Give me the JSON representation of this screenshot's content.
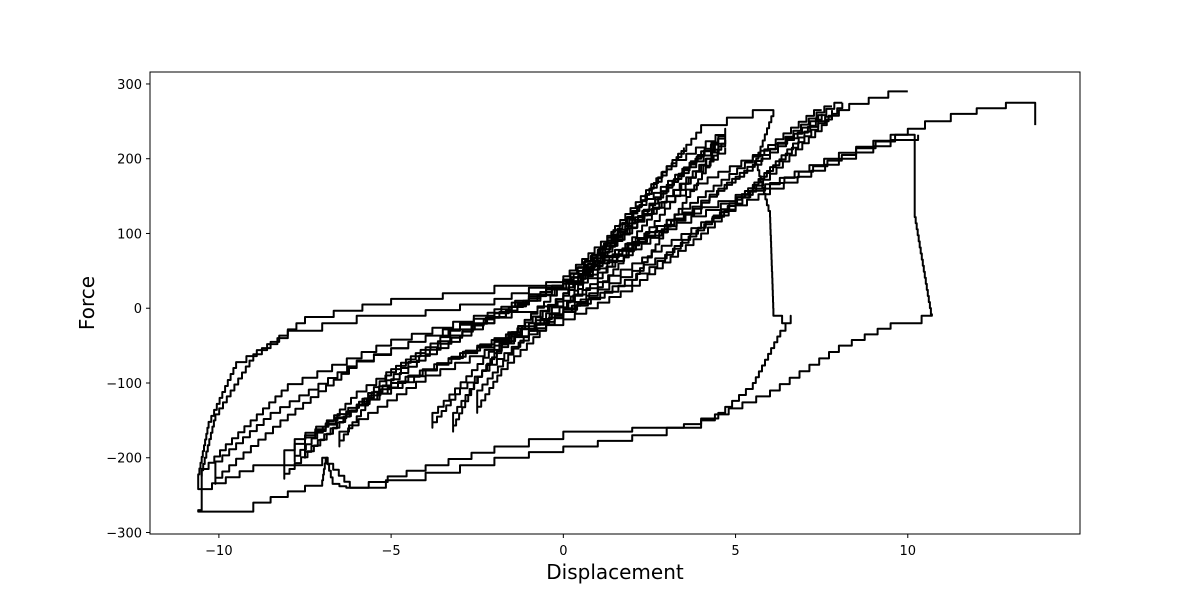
{
  "chart_data": {
    "type": "line",
    "title": "",
    "xlabel": "Displacement",
    "ylabel": "Force",
    "xlim": [
      -12,
      15
    ],
    "ylim": [
      -302,
      316
    ],
    "xticks": [
      -10,
      -5,
      0,
      5,
      10
    ],
    "yticks": [
      -300,
      -200,
      -100,
      0,
      100,
      200,
      300
    ],
    "xtick_labels": [
      "−10",
      "−5",
      "0",
      "5",
      "10"
    ],
    "ytick_labels": [
      "−300",
      "−200",
      "−100",
      "0",
      "100",
      "200",
      "300"
    ],
    "grid": false,
    "legend": "none",
    "line_color": "#000000",
    "series": [
      {
        "points": [
          [
            0,
            0
          ],
          [
            1.5,
            110
          ],
          [
            3,
            190
          ],
          [
            4.7,
            240
          ],
          [
            4.7,
            220
          ],
          [
            2,
            30
          ],
          [
            0,
            -10
          ],
          [
            -1.5,
            -60
          ],
          [
            -3,
            -115
          ],
          [
            -3.8,
            -160
          ],
          [
            -3.8,
            -140
          ],
          [
            -2,
            -50
          ],
          [
            0,
            20
          ],
          [
            2,
            130
          ],
          [
            4.7,
            235
          ]
        ]
      },
      {
        "points": [
          [
            4.7,
            230
          ],
          [
            3.5,
            180
          ],
          [
            2,
            100
          ],
          [
            0,
            25
          ],
          [
            -1.5,
            -40
          ],
          [
            -2.5,
            -100
          ],
          [
            -3.2,
            -165
          ],
          [
            -3.2,
            -140
          ],
          [
            -2,
            -60
          ],
          [
            0,
            20
          ],
          [
            1.5,
            90
          ],
          [
            3,
            150
          ],
          [
            4.7,
            225
          ]
        ]
      },
      {
        "points": [
          [
            4.7,
            220
          ],
          [
            4,
            200
          ],
          [
            2.5,
            130
          ],
          [
            0,
            30
          ],
          [
            -2,
            -20
          ],
          [
            -4,
            -70
          ],
          [
            -5.5,
            -120
          ],
          [
            -6.5,
            -185
          ],
          [
            -6.5,
            -165
          ],
          [
            -4,
            -90
          ],
          [
            -1,
            -30
          ],
          [
            1,
            40
          ],
          [
            3,
            150
          ],
          [
            4.7,
            215
          ]
        ]
      },
      {
        "points": [
          [
            8.1,
            275
          ],
          [
            6,
            200
          ],
          [
            3.5,
            120
          ],
          [
            1,
            45
          ],
          [
            -1,
            10
          ],
          [
            -3,
            -30
          ],
          [
            -5,
            -90
          ],
          [
            -6.5,
            -160
          ],
          [
            -7.8,
            -215
          ],
          [
            -8.1,
            -228
          ],
          [
            -8.1,
            -190
          ],
          [
            -6,
            -130
          ],
          [
            -3,
            -60
          ],
          [
            0,
            -15
          ],
          [
            2,
            30
          ],
          [
            4,
            100
          ],
          [
            6,
            180
          ],
          [
            7.5,
            245
          ],
          [
            8.1,
            275
          ]
        ]
      },
      {
        "points": [
          [
            7.8,
            270
          ],
          [
            6,
            205
          ],
          [
            3.8,
            125
          ],
          [
            1,
            40
          ],
          [
            -1.5,
            -5
          ],
          [
            -4,
            -60
          ],
          [
            -6,
            -120
          ],
          [
            -7.8,
            -205
          ],
          [
            -7.8,
            -175
          ],
          [
            -5,
            -100
          ],
          [
            -2.5,
            -50
          ],
          [
            0,
            -5
          ],
          [
            2.5,
            55
          ],
          [
            5,
            145
          ],
          [
            7,
            230
          ],
          [
            7.8,
            265
          ]
        ]
      },
      {
        "points": [
          [
            7.5,
            265
          ],
          [
            5.5,
            195
          ],
          [
            3,
            110
          ],
          [
            0.5,
            35
          ],
          [
            -2,
            -15
          ],
          [
            -4.5,
            -80
          ],
          [
            -6.2,
            -145
          ],
          [
            -7.5,
            -200
          ],
          [
            -7.5,
            -170
          ],
          [
            -4.5,
            -90
          ],
          [
            -2,
            -40
          ],
          [
            0,
            0
          ],
          [
            3,
            75
          ],
          [
            5.5,
            165
          ],
          [
            7.5,
            260
          ]
        ]
      },
      {
        "points": [
          [
            -6.2,
            -240
          ],
          [
            -4,
            -210
          ],
          [
            -2,
            -185
          ],
          [
            0,
            -165
          ],
          [
            2,
            -160
          ],
          [
            3.5,
            -155
          ],
          [
            4.5,
            -140
          ],
          [
            5.5,
            -100
          ],
          [
            6.3,
            -30
          ],
          [
            6.6,
            -10
          ],
          [
            6.6,
            -20
          ],
          [
            6.1,
            0
          ],
          [
            6.0,
            130
          ],
          [
            5.6,
            200
          ],
          [
            6.1,
            265
          ],
          [
            5.5,
            255
          ],
          [
            4,
            235
          ],
          [
            2,
            120
          ],
          [
            0,
            35
          ],
          [
            -2,
            5
          ],
          [
            -4,
            -10
          ],
          [
            -6,
            -20
          ],
          [
            -8,
            -40
          ],
          [
            -9.5,
            -80
          ],
          [
            -10.3,
            -160
          ],
          [
            -10.6,
            -230
          ],
          [
            -10.6,
            -242
          ],
          [
            -9,
            -210
          ],
          [
            -7,
            -200
          ],
          [
            -6.2,
            -240
          ]
        ]
      },
      {
        "points": [
          [
            -6.9,
            -200
          ],
          [
            -6.7,
            -235
          ],
          [
            -6.5,
            -238
          ],
          [
            -6.3,
            -240
          ],
          [
            -4,
            -220
          ],
          [
            -2,
            -200
          ],
          [
            0,
            -185
          ],
          [
            2,
            -170
          ],
          [
            4,
            -150
          ],
          [
            6,
            -110
          ],
          [
            8,
            -50
          ],
          [
            9.5,
            -20
          ],
          [
            10.4,
            -10
          ],
          [
            10.7,
            -8
          ],
          [
            10.2,
            130
          ],
          [
            10.2,
            232
          ],
          [
            8.5,
            205
          ],
          [
            6,
            160
          ],
          [
            3,
            110
          ],
          [
            0,
            30
          ],
          [
            -2,
            20
          ],
          [
            -5,
            5
          ],
          [
            -7.5,
            -20
          ],
          [
            -9,
            -70
          ],
          [
            -10.1,
            -150
          ],
          [
            -10.5,
            -225
          ],
          [
            -10.5,
            -270
          ],
          [
            -10.6,
            -272
          ],
          [
            -9,
            -260
          ],
          [
            -7,
            -230
          ],
          [
            -6.9,
            -200
          ]
        ]
      },
      {
        "points": [
          [
            10.0,
            290
          ],
          [
            8.3,
            265
          ],
          [
            6.5,
            220
          ],
          [
            4.5,
            175
          ],
          [
            2,
            110
          ],
          [
            0,
            30
          ],
          [
            -2,
            -20
          ],
          [
            -4,
            -45
          ],
          [
            -6,
            -80
          ],
          [
            -8,
            -150
          ],
          [
            -9.5,
            -210
          ],
          [
            -10.1,
            -235
          ],
          [
            -10.1,
            -205
          ],
          [
            -8.5,
            -140
          ],
          [
            -6,
            -70
          ],
          [
            -3,
            -20
          ],
          [
            0,
            10
          ],
          [
            2,
            60
          ],
          [
            4,
            115
          ],
          [
            6,
            160
          ],
          [
            8,
            200
          ],
          [
            9.5,
            225
          ],
          [
            10.3,
            232
          ]
        ]
      },
      {
        "points": [
          [
            13.7,
            245
          ],
          [
            13.7,
            275
          ],
          [
            12,
            260
          ],
          [
            10.5,
            240
          ],
          [
            8,
            200
          ],
          [
            5,
            140
          ],
          [
            2,
            80
          ],
          [
            0,
            25
          ],
          [
            -2,
            -10
          ],
          [
            -5,
            -50
          ],
          [
            -8,
            -110
          ],
          [
            -9.8,
            -190
          ],
          [
            -10.3,
            -215
          ],
          [
            -10.5,
            -225
          ]
        ]
      },
      {
        "points": [
          [
            0,
            0
          ],
          [
            1,
            60
          ],
          [
            2,
            115
          ],
          [
            3,
            165
          ],
          [
            4.5,
            220
          ],
          [
            4.3,
            200
          ],
          [
            2.5,
            100
          ],
          [
            1,
            20
          ],
          [
            -0.5,
            -30
          ],
          [
            -1.8,
            -90
          ],
          [
            -2.5,
            -140
          ],
          [
            -2.5,
            -110
          ],
          [
            -1,
            -30
          ],
          [
            0.5,
            40
          ],
          [
            1.8,
            110
          ],
          [
            2.5,
            160
          ],
          [
            3,
            190
          ],
          [
            3.5,
            215
          ]
        ]
      }
    ]
  }
}
